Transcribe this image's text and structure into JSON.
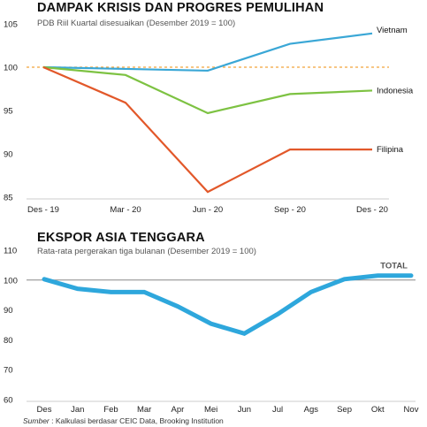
{
  "chart_data": [
    {
      "type": "line",
      "title": "DAMPAK KRISIS DAN PROGRES PEMULIHAN",
      "subtitle": "PDB Riil Kuartal disesuaikan (Desember 2019 = 100)",
      "categories": [
        "Des - 19",
        "Mar - 20",
        "Jun - 20",
        "Sep - 20",
        "Des - 20"
      ],
      "ylim": [
        85,
        105
      ],
      "yticks": [
        85,
        90,
        95,
        100,
        105
      ],
      "reference_line": 100,
      "grid": false,
      "series": [
        {
          "name": "Vietnam",
          "values": [
            100,
            99.8,
            99.6,
            102.7,
            103.9
          ],
          "color": "#3aa7d6"
        },
        {
          "name": "Indonesia",
          "values": [
            100,
            99.1,
            94.7,
            96.9,
            97.3
          ],
          "color": "#7dc242"
        },
        {
          "name": "Filipina",
          "values": [
            100,
            95.9,
            85.6,
            90.5,
            90.5
          ],
          "color": "#e2582a"
        }
      ],
      "reference_color": "#f2a33a"
    },
    {
      "type": "line",
      "title": "EKSPOR ASIA TENGGARA",
      "subtitle": "Rata-rata pergerakan tiga bulanan (Desember 2019 = 100)",
      "categories": [
        "Des",
        "Jan",
        "Feb",
        "Mar",
        "Apr",
        "Mei",
        "Jun",
        "Jul",
        "Ags",
        "Sep",
        "Okt",
        "Nov"
      ],
      "ylim": [
        60,
        110
      ],
      "yticks": [
        60,
        70,
        80,
        90,
        100,
        110
      ],
      "reference_line": 100,
      "grid": false,
      "series": [
        {
          "name": "TOTAL",
          "values": [
            100.3,
            97.1,
            96,
            96,
            91.2,
            85.4,
            82.1,
            88.6,
            96,
            100.3,
            101.5,
            101.5
          ],
          "color": "#2ea7dc"
        }
      ],
      "reference_color": "#888888"
    }
  ],
  "source": {
    "label": "Sumber",
    "text": " : Kalkulasi berdasar CEIC Data, Brooking Institution"
  }
}
